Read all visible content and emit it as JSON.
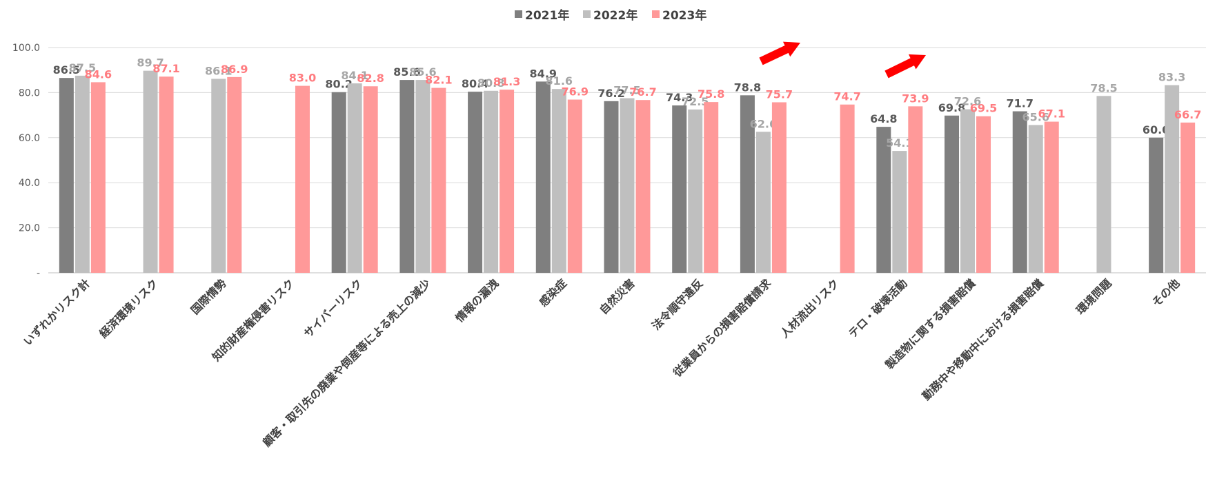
{
  "chart_data": {
    "type": "bar",
    "categories": [
      "いずれかリスク計",
      "経済環境リスク",
      "国際情勢",
      "知的財産権侵害リスク",
      "サイバーリスク",
      "顧客・取引先の廃業や倒産等による売上の減少",
      "情報の漏洩",
      "感染症",
      "自然災害",
      "法令順守違反",
      "従業員からの損害賠償請求",
      "人材流出リスク",
      "テロ・破壊活動",
      "製造物に関する損害賠償",
      "勤務中や移動中における損害賠償",
      "環境問題",
      "その他"
    ],
    "series": [
      {
        "name": "2021年",
        "color": "#7f7f7f",
        "label_color": "#595959",
        "values": [
          86.5,
          null,
          null,
          null,
          80.2,
          85.6,
          80.4,
          84.9,
          76.2,
          74.3,
          78.8,
          null,
          64.8,
          69.8,
          71.7,
          null,
          60.0
        ]
      },
      {
        "name": "2022年",
        "color": "#bfbfbf",
        "label_color": "#a6a6a6",
        "values": [
          87.5,
          89.7,
          86.1,
          null,
          84.1,
          85.6,
          80.8,
          81.6,
          77.5,
          72.5,
          62.6,
          null,
          54.1,
          72.6,
          65.6,
          78.5,
          83.3
        ]
      },
      {
        "name": "2023年",
        "color": "#ff9999",
        "label_color": "#ff7c80",
        "values": [
          84.6,
          87.1,
          86.9,
          83.0,
          82.8,
          82.1,
          81.3,
          76.9,
          76.7,
          75.8,
          75.7,
          74.7,
          73.9,
          69.5,
          67.1,
          null,
          66.7
        ]
      }
    ],
    "y_tick_labels": [
      "-",
      "20.0",
      "40.0",
      "60.0",
      "80.0",
      "100.0"
    ],
    "ylim": [
      0,
      100
    ],
    "grid": true,
    "legend": "top-center",
    "annotations": [
      "red-arrow",
      "red-arrow"
    ]
  }
}
